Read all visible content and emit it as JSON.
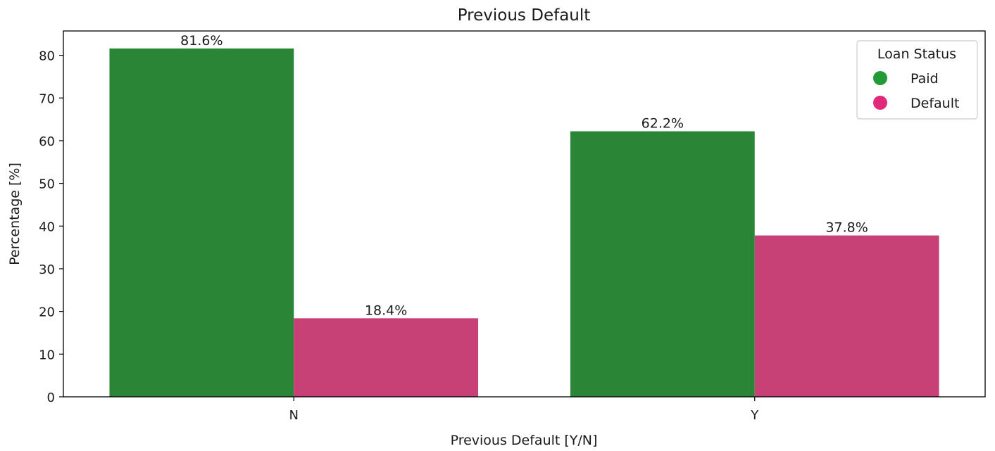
{
  "chart_data": {
    "type": "bar",
    "title": "Previous Default",
    "xlabel": "Previous Default [Y/N]",
    "ylabel": "Percentage [%]",
    "categories": [
      "N",
      "Y"
    ],
    "series": [
      {
        "name": "Paid",
        "values": [
          81.6,
          62.2
        ],
        "labels": [
          "81.6%",
          "62.2%"
        ],
        "color": "#2b8537"
      },
      {
        "name": "Default",
        "values": [
          18.4,
          37.8
        ],
        "labels": [
          "18.4%",
          "37.8%"
        ],
        "color": "#c84176"
      }
    ],
    "ylim": [
      0,
      85.7
    ],
    "yticks": [
      0,
      10,
      20,
      30,
      40,
      50,
      60,
      70,
      80
    ],
    "grid": false,
    "legend": {
      "title": "Loan Status",
      "placement": "top-right",
      "entries": [
        {
          "label": "Paid",
          "color": "#229a36"
        },
        {
          "label": "Default",
          "color": "#e0297a"
        }
      ]
    }
  }
}
